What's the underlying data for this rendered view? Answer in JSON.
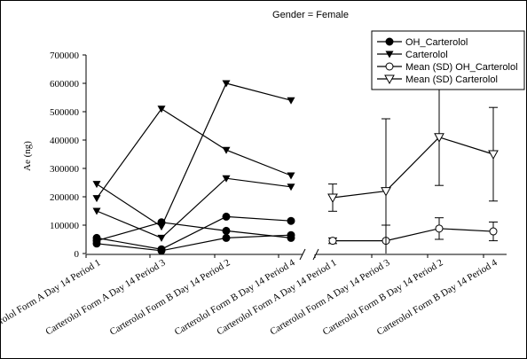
{
  "chart_data": {
    "type": "line",
    "title": "Gender = Female",
    "ylabel": "Ae (ng)",
    "ylim": [
      0,
      700000
    ],
    "yticks": [
      0,
      100000,
      200000,
      300000,
      400000,
      500000,
      600000,
      700000
    ],
    "grid": false,
    "legend_position": "top-right",
    "categories": [
      "Carterolol Form A  Day 14  Period 1",
      "Carterolol Form A  Day 14  Period 3",
      "Carterolol Form B  Day 14  Period 2",
      "Carterolol Form B  Day 14  Period 4"
    ],
    "groups": [
      {
        "series": "OH_Carterolol",
        "subjects": [
          [
            55000,
            15000,
            130000,
            115000
          ],
          [
            45000,
            110000,
            80000,
            55000
          ],
          [
            35000,
            10000,
            55000,
            65000
          ]
        ]
      },
      {
        "series": "Carterolol",
        "subjects": [
          [
            245000,
            95000,
            600000,
            540000
          ],
          [
            195000,
            510000,
            365000,
            275000
          ],
          [
            150000,
            55000,
            265000,
            235000
          ]
        ]
      },
      {
        "series": "Mean (SD) OH_Carterolol",
        "mean": [
          45000,
          45000,
          88000,
          78000
        ],
        "sd": [
          10000,
          55000,
          38000,
          33000
        ]
      },
      {
        "series": "Mean (SD) Carterolol",
        "mean": [
          197000,
          220000,
          410000,
          350000
        ],
        "sd": [
          48000,
          255000,
          170000,
          165000
        ]
      }
    ],
    "legend": [
      "OH_Carterolol",
      "Carterolol",
      "Mean (SD) OH_Carterolol",
      "Mean (SD) Carterolol"
    ],
    "colors": {
      "line": "#000000",
      "background": "#ffffff"
    }
  }
}
